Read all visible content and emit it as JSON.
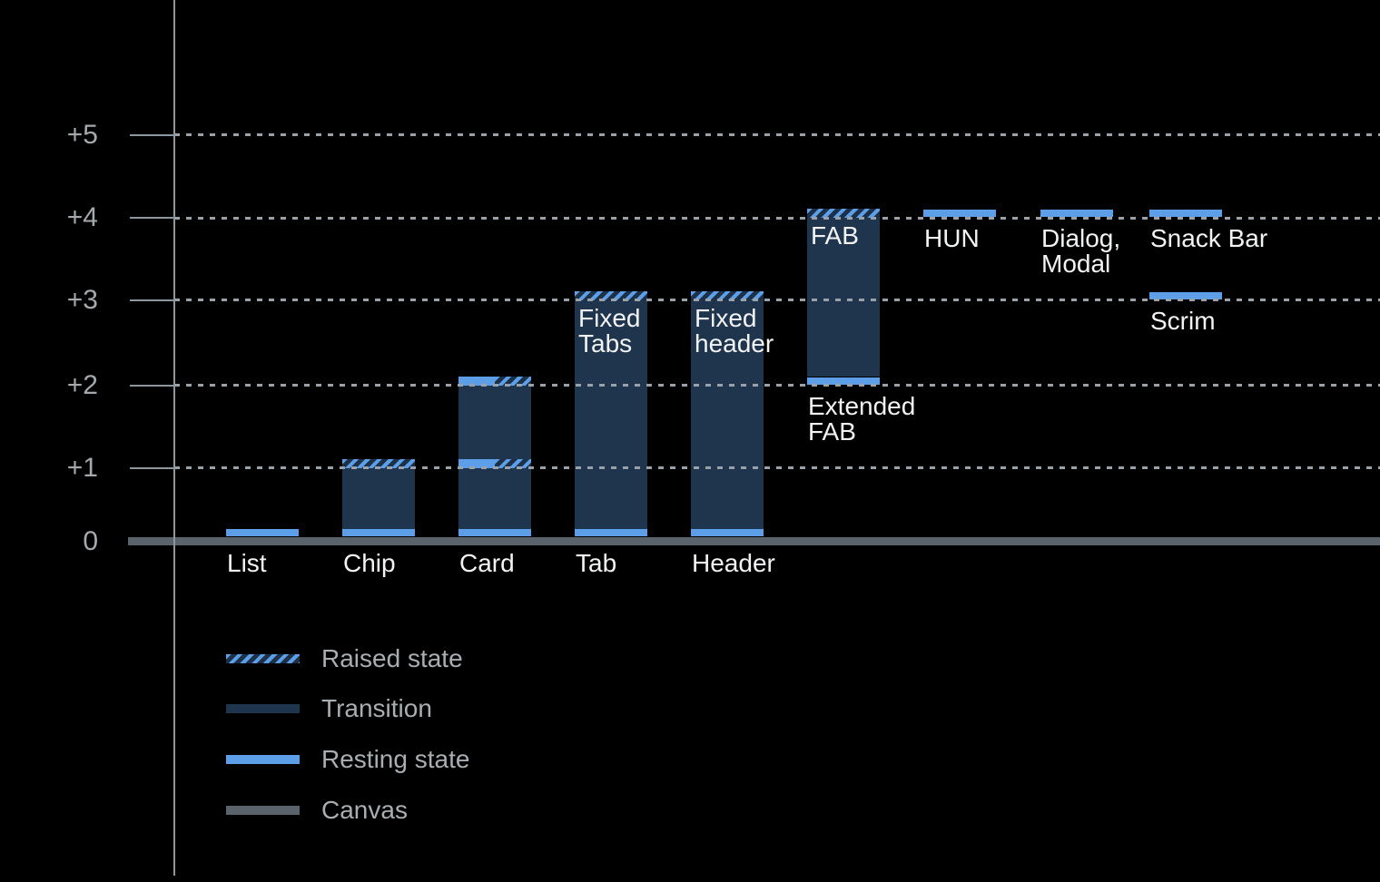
{
  "background": "#000000",
  "colors": {
    "resting": "#5C9FE8",
    "transition": "#1F344D",
    "hatch_dark": "#1C3048",
    "canvas": "#5A636C",
    "axis": "#8E969E",
    "grid_dots": "#9BA1A8",
    "tick_label": "#A4A9AE",
    "bar_label": "#F2F3F4",
    "legend_label": "#A9AEB2"
  },
  "chart_data": {
    "type": "bar",
    "title": "",
    "xlabel": "",
    "ylabel": "",
    "ylim": [
      0,
      5
    ],
    "grid": "dotted horizontal gridlines at each elevation level",
    "legend_position": "bottom-left",
    "y_ticks": [
      {
        "label": "+5",
        "value": 5
      },
      {
        "label": "+4",
        "value": 4
      },
      {
        "label": "+3",
        "value": 3
      },
      {
        "label": "+2",
        "value": 2
      },
      {
        "label": "+1",
        "value": 1
      },
      {
        "label": "0",
        "value": 0
      }
    ],
    "x_categories": [
      "List",
      "Chip",
      "Card",
      "Tab",
      "Header",
      "Extended FAB",
      "HUN",
      "Dialog, Modal",
      "Snack Bar",
      "Scrim"
    ],
    "items": [
      {
        "id": "list",
        "label": "List",
        "label_pos": "axis",
        "segments": [
          {
            "type": "resting",
            "level": 0
          }
        ]
      },
      {
        "id": "chip",
        "label": "Chip",
        "label_pos": "axis",
        "segments": [
          {
            "type": "resting",
            "level": 0
          },
          {
            "type": "transition",
            "from": 0,
            "to": 1
          },
          {
            "type": "raised",
            "level": 1
          }
        ]
      },
      {
        "id": "card",
        "label": "Card",
        "label_pos": "axis",
        "segments": [
          {
            "type": "resting",
            "level": 0
          },
          {
            "type": "transition",
            "from": 0,
            "to": 1
          },
          {
            "type": "resting-raised",
            "level": 1
          },
          {
            "type": "transition",
            "from": 1,
            "to": 2
          },
          {
            "type": "resting-raised",
            "level": 2
          }
        ]
      },
      {
        "id": "tab",
        "label": "Tab",
        "label_pos": "axis",
        "inner_label": "Fixed\nTabs",
        "segments": [
          {
            "type": "resting",
            "level": 0
          },
          {
            "type": "transition",
            "from": 0,
            "to": 3
          },
          {
            "type": "raised",
            "level": 3
          }
        ]
      },
      {
        "id": "header",
        "label": "Header",
        "label_pos": "axis",
        "inner_label": "Fixed\nheader",
        "segments": [
          {
            "type": "resting",
            "level": 0
          },
          {
            "type": "transition",
            "from": 0,
            "to": 3
          },
          {
            "type": "raised",
            "level": 3
          }
        ]
      },
      {
        "id": "extended-fab",
        "label": "Extended\nFAB",
        "label_pos": "below:2",
        "inner_label": "FAB",
        "segments": [
          {
            "type": "resting",
            "level": 2
          },
          {
            "type": "transition",
            "from": 2,
            "to": 4
          },
          {
            "type": "raised",
            "level": 4
          }
        ]
      },
      {
        "id": "hun",
        "label": "HUN",
        "label_pos": "below:4",
        "segments": [
          {
            "type": "resting",
            "level": 4
          }
        ]
      },
      {
        "id": "dialog-modal",
        "label": "Dialog,\nModal",
        "label_pos": "below:4",
        "segments": [
          {
            "type": "resting",
            "level": 4
          }
        ]
      },
      {
        "id": "snack-bar",
        "label": "Snack Bar",
        "label_pos": "below:4",
        "segments": [
          {
            "type": "resting",
            "level": 4
          }
        ]
      },
      {
        "id": "scrim",
        "label": "Scrim",
        "label_pos": "below:3",
        "segments": [
          {
            "type": "resting",
            "level": 3
          }
        ]
      }
    ]
  },
  "legend": {
    "items": [
      {
        "label": "Raised state",
        "swatch": "raised"
      },
      {
        "label": "Transition",
        "swatch": "transition"
      },
      {
        "label": "Resting state",
        "swatch": "resting"
      },
      {
        "label": "Canvas",
        "swatch": "canvas"
      }
    ]
  }
}
